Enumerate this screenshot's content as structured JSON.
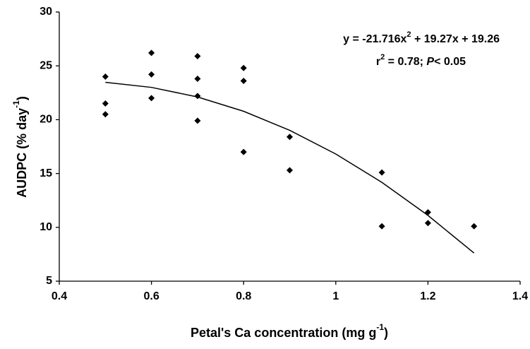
{
  "chart_data": {
    "type": "scatter",
    "x_label": [
      "Petal's Ca concentration (mg g",
      "-1",
      ")"
    ],
    "y_label": [
      "AUDPC (% day",
      "-1",
      ")"
    ],
    "annotations": [
      [
        "y = -21.716x",
        "2",
        " + 19.27x + 19.26"
      ],
      [
        "r",
        "2",
        " = 0.78; ",
        "P",
        "< 0.05"
      ]
    ],
    "x": [
      0.5,
      0.5,
      0.5,
      0.6,
      0.6,
      0.6,
      0.7,
      0.7,
      0.7,
      0.7,
      0.8,
      0.8,
      0.8,
      0.9,
      0.9,
      1.1,
      1.1,
      1.2,
      1.2,
      1.3
    ],
    "values": [
      24.0,
      21.5,
      20.5,
      26.2,
      24.2,
      22.0,
      25.9,
      23.8,
      22.2,
      19.9,
      24.8,
      23.6,
      17.0,
      18.4,
      15.3,
      15.1,
      10.1,
      11.4,
      10.4,
      10.1
    ],
    "color": "#000000",
    "trendline": {
      "x": [
        0.5,
        0.6,
        0.7,
        0.8,
        0.9,
        1.0,
        1.1,
        1.2,
        1.3
      ],
      "y": [
        23.47,
        23.0,
        22.11,
        20.78,
        19.01,
        16.81,
        14.18,
        11.11,
        7.61
      ]
    },
    "xlim": [
      0.4,
      1.4
    ],
    "xticks": [
      0.4,
      0.6,
      0.8,
      1,
      1.2,
      1.4
    ],
    "ylim": [
      5,
      30
    ],
    "yticks": [
      5,
      10,
      15,
      20,
      25,
      30
    ],
    "grid": false
  }
}
